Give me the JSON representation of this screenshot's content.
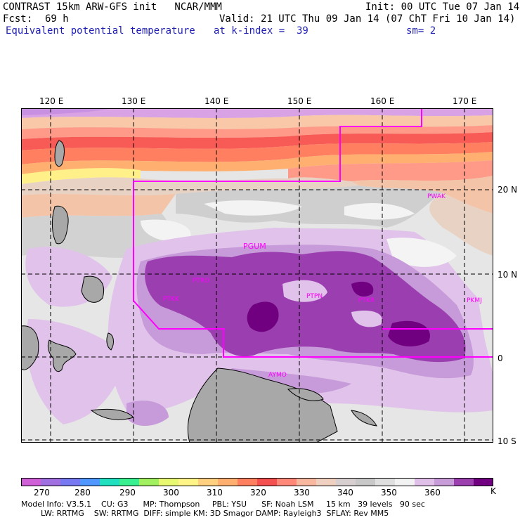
{
  "header": {
    "title": "CONTRAST 15km ARW-GFS init   NCAR/MMM",
    "init": "Init: 00 UTC Tue 07 Jan 14",
    "fcst_label": "Fcst:",
    "fcst_value": "69 h",
    "valid": "Valid: 21 UTC Thu 09 Jan 14 (07 ChT Fri 10 Jan 14)",
    "field": "Equivalent potential temperature",
    "level": "at k-index =  39",
    "smooth": "sm= 2"
  },
  "map": {
    "lon_labels": [
      "120 E",
      "130 E",
      "140 E",
      "150 E",
      "160 E",
      "170 E"
    ],
    "lat_labels": [
      "20 N",
      "10 N",
      "0",
      "10 S"
    ],
    "stations": [
      "PWAK",
      "PGUM",
      "PTRO",
      "PTKK",
      "PTPN",
      "PTKR",
      "PKMJ",
      "AYMO"
    ],
    "boundary_color": "#ff00ff",
    "station_color": "#ff00ff"
  },
  "colorbar": {
    "labels": [
      "270",
      "280",
      "290",
      "300",
      "310",
      "320",
      "330",
      "340",
      "350",
      "360"
    ],
    "unit": "K",
    "colors": [
      "#d060d8",
      "#a070e0",
      "#7878f0",
      "#5098ff",
      "#20e0c0",
      "#38f090",
      "#a0f060",
      "#e8f870",
      "#fff488",
      "#ffd080",
      "#ffb070",
      "#ff8060",
      "#f45050",
      "#ff8878",
      "#f8b8a0",
      "#f0d0c0",
      "#d8d0d0",
      "#c8c8c8",
      "#e0e0e0",
      "#f2f2f2",
      "#e0c0e8",
      "#c89cd8",
      "#9c40b0",
      "#700080"
    ]
  },
  "footer": {
    "line1": "Model Info: V3.5.1    CU: G3      MP: Thompson     PBL: YSU      SF: Noah LSM     15 km   39 levels   90 sec",
    "line2": "        LW: RRTMG    SW: RRTMG  DIFF: simple KM: 3D Smagor DAMP: Rayleigh3  SFLAY: Rev MM5"
  }
}
